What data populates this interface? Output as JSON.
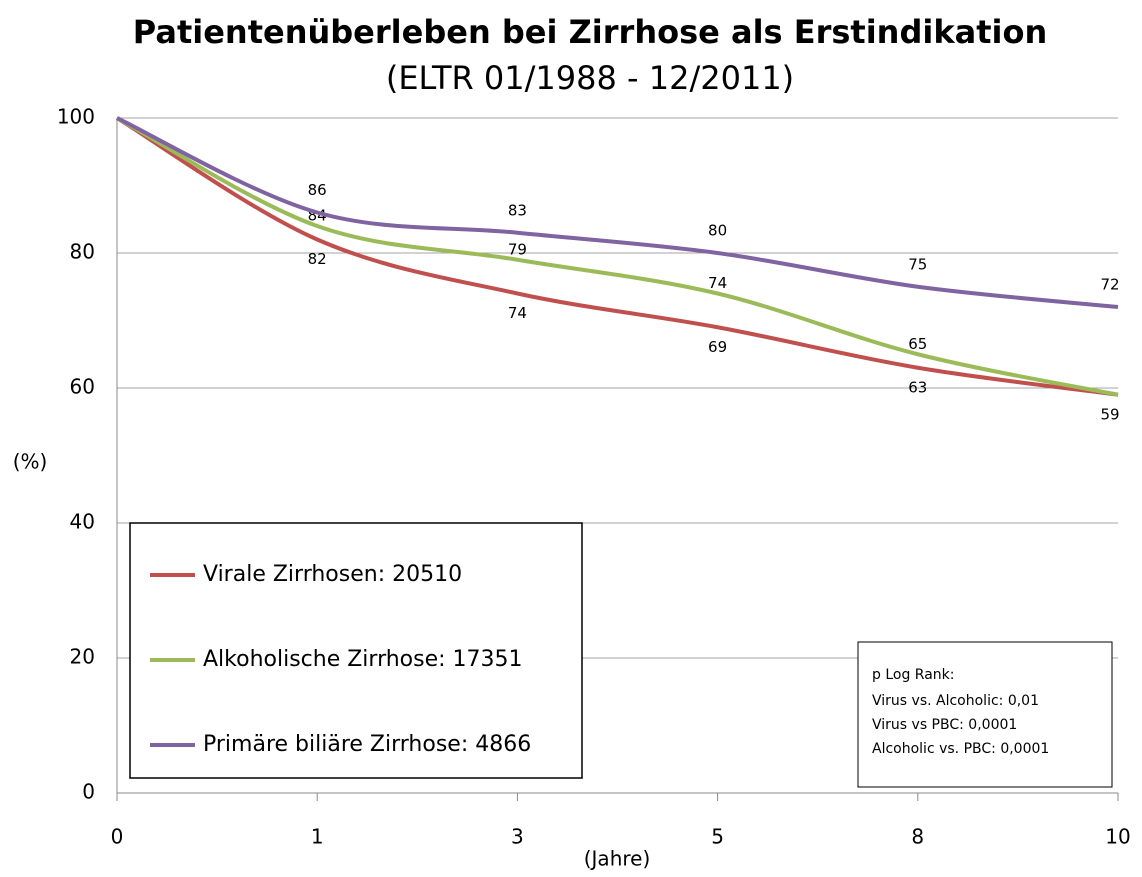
{
  "chart_data": {
    "type": "line",
    "title": "Patientenüberleben bei Zirrhose als Erstindikation",
    "subtitle": "(ELTR 01/1988 - 12/2011)",
    "y_label": "(%)",
    "x_label": "(Jahre)",
    "categories": [
      "0",
      "1",
      "3",
      "5",
      "8",
      "10"
    ],
    "series": [
      {
        "name": "Virale Zirrhosen: 20510",
        "color": "#c0504d",
        "values": [
          100,
          82,
          74,
          69,
          63,
          59
        ],
        "value_labels": [
          null,
          "82",
          "74",
          "69",
          "63",
          "59"
        ]
      },
      {
        "name": "Alkoholische Zirrhose: 17351",
        "color": "#9bbb59",
        "values": [
          100,
          84,
          79,
          74,
          65,
          59
        ],
        "value_labels": [
          null,
          "84",
          "79",
          "74",
          "65",
          null
        ]
      },
      {
        "name": "Primäre biliäre Zirrhose: 4866",
        "color": "#8064a2",
        "values": [
          100,
          86,
          83,
          80,
          75,
          72
        ],
        "value_labels": [
          null,
          "86",
          "83",
          "80",
          "75",
          "72"
        ]
      }
    ],
    "ylim": [
      0,
      100
    ],
    "yticks": [
      0,
      20,
      40,
      60,
      80,
      100
    ],
    "grid": true,
    "legend": "lower left",
    "annotation": {
      "title": "p Log Rank:",
      "lines": [
        "Virus vs. Alcoholic: 0,01",
        "Virus vs PBC: 0,0001",
        "Alcoholic vs. PBC: 0,0001"
      ]
    }
  }
}
